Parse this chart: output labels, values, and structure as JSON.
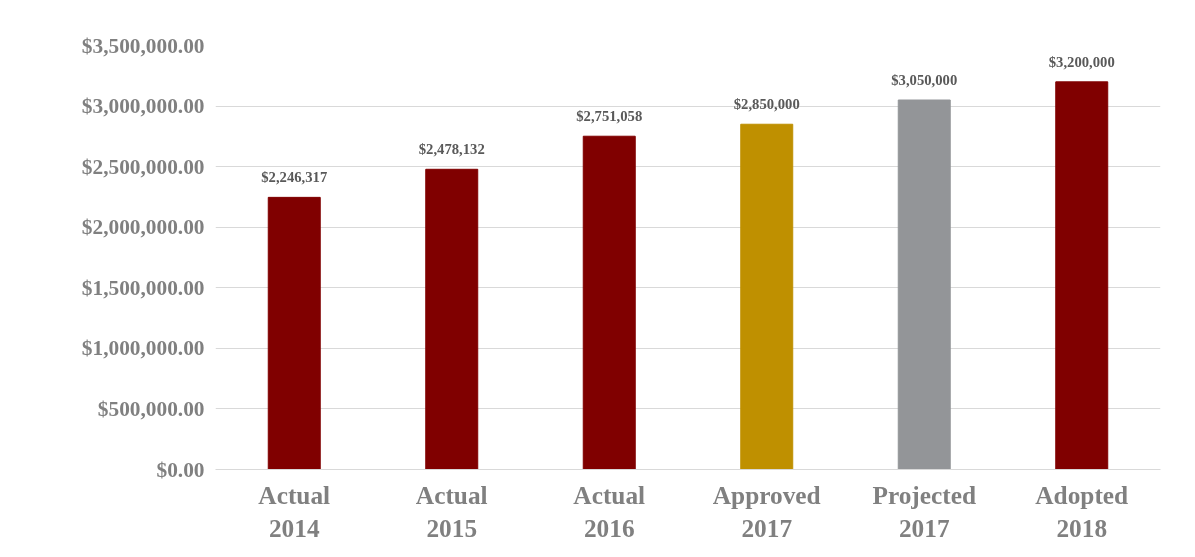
{
  "chart_data": {
    "type": "bar",
    "categories": [
      "Actual\n2014",
      "Actual\n2015",
      "Actual\n2016",
      "Approved\n2017",
      "Projected\n2017",
      "Adopted\n2018"
    ],
    "values": [
      2246317,
      2478132,
      2751058,
      2850000,
      3050000,
      3200000
    ],
    "colors": [
      "#800000",
      "#800000",
      "#800000",
      "#bf9000",
      "#939598",
      "#800000"
    ],
    "value_labels": [
      "$2,246,317",
      "$2,478,132",
      "$2,751,058",
      "$2,850,000",
      "$3,050,000",
      "$3,200,000"
    ],
    "ylim": [
      0,
      3500000
    ],
    "yticks": [
      {
        "value": 0,
        "label": "$0.00"
      },
      {
        "value": 500000,
        "label": "$500,000.00"
      },
      {
        "value": 1000000,
        "label": "$1,000,000.00"
      },
      {
        "value": 1500000,
        "label": "$1,500,000.00"
      },
      {
        "value": 2000000,
        "label": "$2,000,000.00"
      },
      {
        "value": 2500000,
        "label": "$2,500,000.00"
      },
      {
        "value": 3000000,
        "label": "$3,000,000.00"
      },
      {
        "value": 3500000,
        "label": "$3,500,000.00"
      }
    ],
    "grid": "y"
  }
}
